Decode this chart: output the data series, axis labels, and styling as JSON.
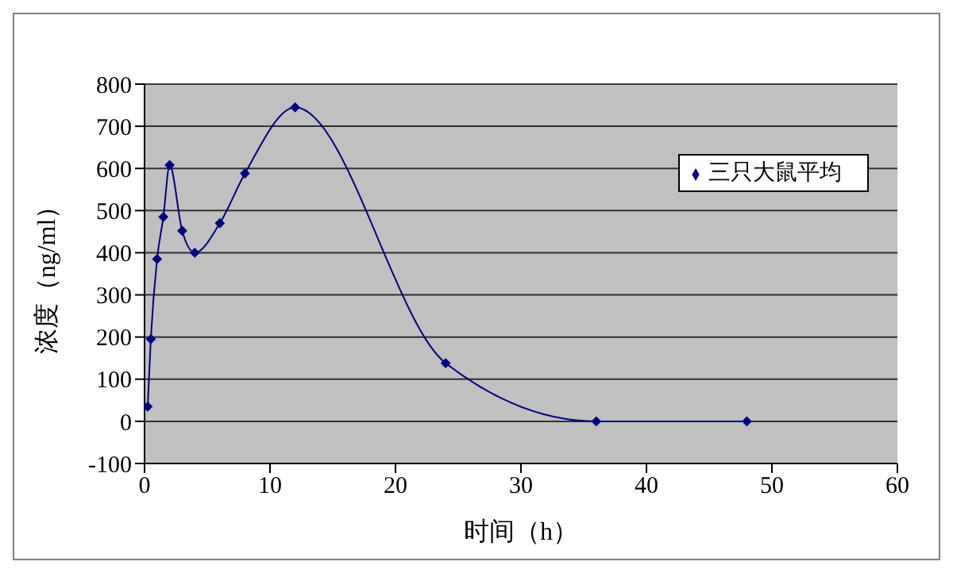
{
  "chart_data": {
    "type": "line",
    "xlabel": "时间（h）",
    "ylabel": "浓度（ng/ml）",
    "x": [
      0.25,
      0.5,
      1,
      1.5,
      2,
      3,
      4,
      6,
      8,
      12,
      24,
      36,
      48
    ],
    "series": [
      {
        "name": "三只大鼠平均",
        "color": "#000080",
        "values": [
          35,
          195,
          385,
          485,
          608,
          452,
          400,
          470,
          588,
          745,
          138,
          0,
          0
        ]
      }
    ],
    "xlim": [
      0,
      60
    ],
    "xticks": [
      0,
      10,
      20,
      30,
      40,
      50,
      60
    ],
    "ylim": [
      -100,
      800
    ],
    "yticks": [
      -100,
      0,
      100,
      200,
      300,
      400,
      500,
      600,
      700,
      800
    ],
    "grid": "y",
    "legend": "top right",
    "marker": "diamond",
    "line_style": "solid"
  }
}
